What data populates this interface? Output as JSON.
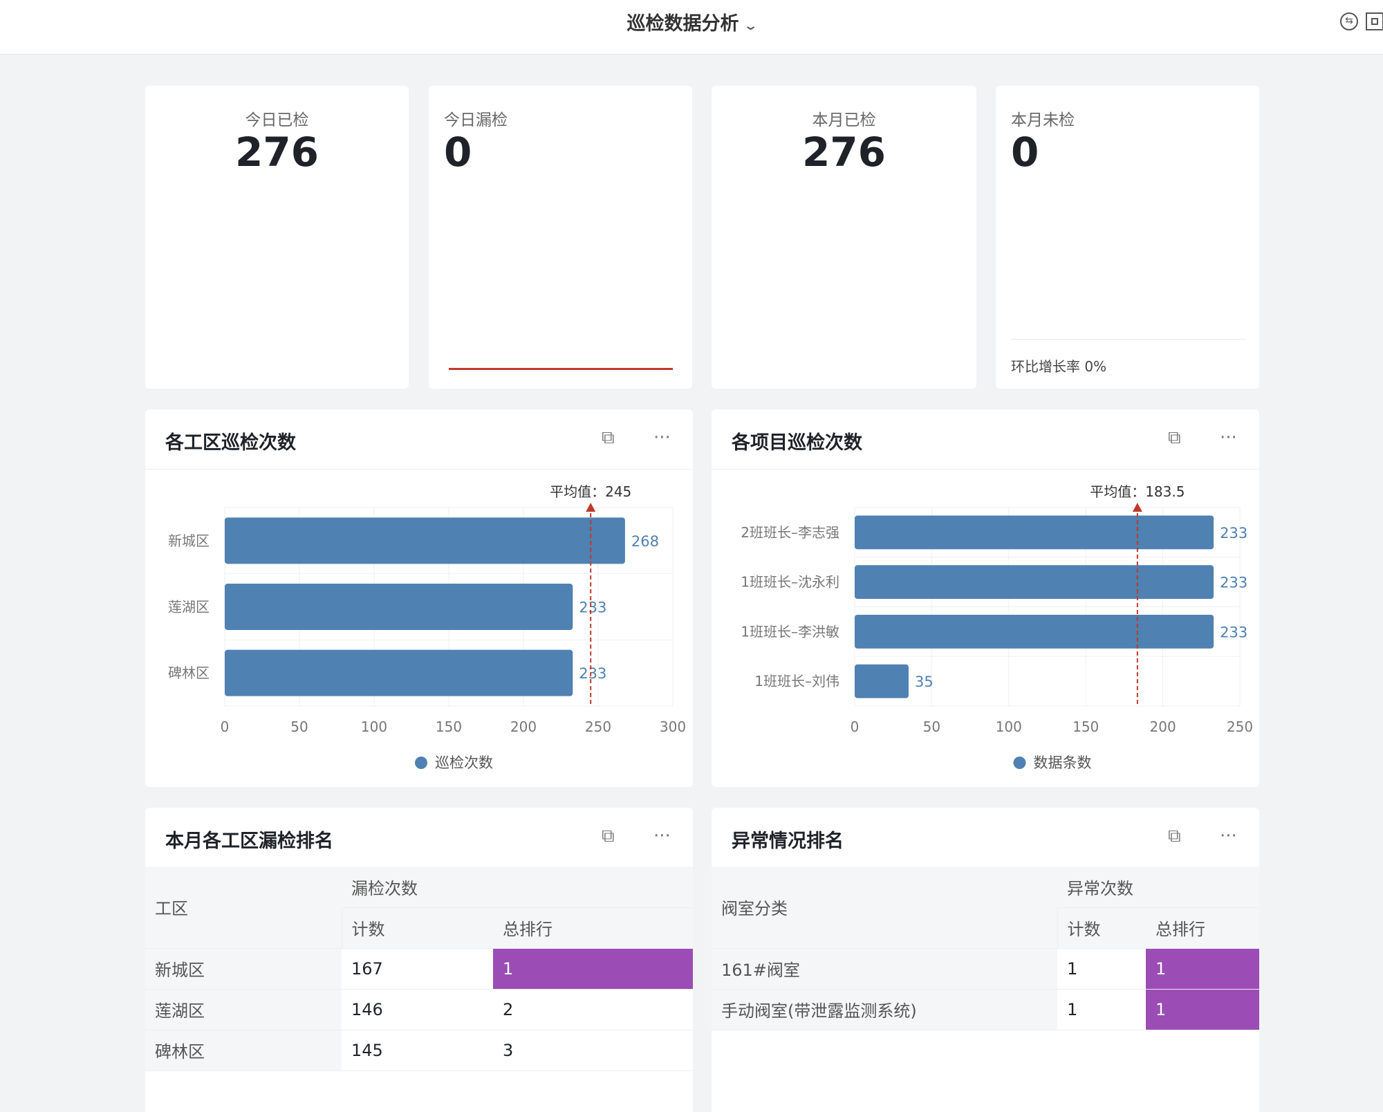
{
  "header": {
    "title": "巡检数据分析",
    "icons": [
      "switch-icon",
      "fullscreen-icon"
    ]
  },
  "kpis": [
    {
      "label": "今日已检",
      "value": "276"
    },
    {
      "label": "今日漏检",
      "value": "0"
    },
    {
      "label": "本月已检",
      "value": "276"
    },
    {
      "label": "本月未检",
      "value": "0",
      "footer": "环比增长率 0%"
    }
  ],
  "colors": {
    "bar": "#4f81b2",
    "avg_line": "#c0392b",
    "rank_highlight": "#9b4db5"
  },
  "chart_data": [
    {
      "type": "bar",
      "orientation": "horizontal",
      "title": "各工区巡检次数",
      "categories": [
        "新城区",
        "莲湖区",
        "碑林区"
      ],
      "values": [
        268,
        233,
        233
      ],
      "series": [
        {
          "name": "巡检次数",
          "values": [
            268,
            233,
            233
          ]
        }
      ],
      "xlim": [
        0,
        300
      ],
      "ticks": [
        0,
        50,
        100,
        150,
        200,
        250,
        300
      ],
      "average": {
        "label": "平均值：245",
        "value": 245
      },
      "legend": "bottom",
      "grid": true
    },
    {
      "type": "bar",
      "orientation": "horizontal",
      "title": "各项目巡检次数",
      "categories": [
        "2班班长–李志强",
        "1班班长–沈永利",
        "1班班长–李洪敏",
        "1班班长–刘伟"
      ],
      "values": [
        233,
        233,
        233,
        35
      ],
      "series": [
        {
          "name": "数据条数",
          "values": [
            233,
            233,
            233,
            35
          ]
        }
      ],
      "xlim": [
        0,
        250
      ],
      "ticks": [
        0,
        50,
        100,
        150,
        200,
        250
      ],
      "average": {
        "label": "平均值：183.5",
        "value": 183.5
      },
      "legend": "bottom",
      "grid": true
    }
  ],
  "tables": [
    {
      "title": "本月各工区漏检排名",
      "col0": "工区",
      "group": "漏检次数",
      "sub": [
        "计数",
        "总排行"
      ],
      "rows": [
        [
          "新城区",
          "167",
          "1"
        ],
        [
          "莲湖区",
          "146",
          "2"
        ],
        [
          "碑林区",
          "145",
          "3"
        ]
      ]
    },
    {
      "title": "异常情况排名",
      "col0": "阀室分类",
      "group": "异常次数",
      "sub": [
        "计数",
        "总排行"
      ],
      "rows": [
        [
          "161#阀室",
          "1",
          "1"
        ],
        [
          "手动阀室(带泄露监测系统)",
          "1",
          "1"
        ]
      ]
    }
  ]
}
